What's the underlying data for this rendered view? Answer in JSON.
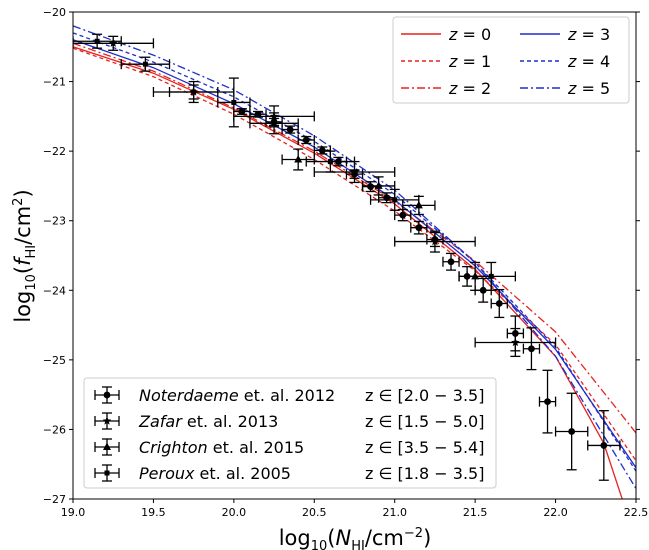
{
  "chart_data": {
    "type": "scatter",
    "title": "",
    "xlabel": "log10(NHI/cm−2)",
    "ylabel": "log10(fHI/cm2)",
    "xlim": [
      19.0,
      22.5
    ],
    "ylim": [
      -27,
      -20
    ],
    "xticks": [
      "19.0",
      "19.5",
      "20.0",
      "20.5",
      "21.0",
      "21.5",
      "22.0",
      "22.5"
    ],
    "yticks": [
      "−27",
      "−26",
      "−25",
      "−24",
      "−23",
      "−22",
      "−21",
      "−20"
    ],
    "grid": false,
    "model_legend_placement": "top-right",
    "data_legend_placement": "bottom-left",
    "model_curves": [
      {
        "name": "z = 0",
        "z": "0",
        "color": "#e6231f",
        "dash": "solid",
        "x": [
          19.0,
          19.5,
          20.0,
          20.5,
          21.0,
          21.5,
          22.0,
          22.3,
          22.5
        ],
        "y": [
          -20.5,
          -20.88,
          -21.4,
          -22.03,
          -22.76,
          -23.7,
          -24.95,
          -26.2,
          -27.6
        ]
      },
      {
        "name": "z = 1",
        "z": "1",
        "color": "#e6231f",
        "dash": "dashed",
        "x": [
          19.0,
          19.5,
          20.0,
          20.5,
          21.0,
          21.5,
          22.0,
          22.5
        ],
        "y": [
          -20.52,
          -20.93,
          -21.47,
          -22.12,
          -22.86,
          -23.72,
          -24.78,
          -26.45
        ]
      },
      {
        "name": "z = 2",
        "z": "2",
        "color": "#e6231f",
        "dash": "dashdot",
        "x": [
          19.0,
          19.5,
          20.0,
          20.5,
          21.0,
          21.5,
          22.0,
          22.5
        ],
        "y": [
          -20.45,
          -20.85,
          -21.38,
          -22.0,
          -22.72,
          -23.58,
          -24.6,
          -26.05
        ]
      },
      {
        "name": "z = 3",
        "z": "3",
        "color": "#1f2fcc",
        "dash": "solid",
        "x": [
          19.0,
          19.5,
          20.0,
          20.5,
          21.0,
          21.5,
          22.0,
          22.5
        ],
        "y": [
          -20.4,
          -20.8,
          -21.32,
          -21.94,
          -22.7,
          -23.65,
          -24.85,
          -26.55
        ]
      },
      {
        "name": "z = 4",
        "z": "4",
        "color": "#1f2fcc",
        "dash": "dashed",
        "x": [
          19.0,
          19.5,
          20.0,
          20.5,
          21.0,
          21.5,
          22.0,
          22.5
        ],
        "y": [
          -20.3,
          -20.72,
          -21.22,
          -21.86,
          -22.62,
          -23.6,
          -24.82,
          -26.6
        ]
      },
      {
        "name": "z = 5",
        "z": "5",
        "color": "#1f2fcc",
        "dash": "dashdot",
        "x": [
          19.0,
          19.5,
          20.0,
          20.5,
          21.0,
          21.5,
          22.0,
          22.5
        ],
        "y": [
          -20.2,
          -20.62,
          -21.12,
          -21.78,
          -22.56,
          -23.6,
          -24.95,
          -26.85
        ]
      }
    ],
    "observations": [
      {
        "name": "Noterdaeme et. al. 2012",
        "author": "Noterdaeme",
        "rest": " et. al. 2012",
        "zrange": "z ∈ [2.0 − 3.5]",
        "marker": "circle",
        "points": [
          {
            "x": 20.05,
            "y": -21.43,
            "xerr": 0.05,
            "yerr": 0.04
          },
          {
            "x": 20.15,
            "y": -21.47,
            "xerr": 0.05,
            "yerr": 0.04
          },
          {
            "x": 20.25,
            "y": -21.58,
            "xerr": 0.05,
            "yerr": 0.05
          },
          {
            "x": 20.35,
            "y": -21.69,
            "xerr": 0.05,
            "yerr": 0.05
          },
          {
            "x": 20.45,
            "y": -21.84,
            "xerr": 0.05,
            "yerr": 0.05
          },
          {
            "x": 20.55,
            "y": -21.99,
            "xerr": 0.05,
            "yerr": 0.05
          },
          {
            "x": 20.65,
            "y": -22.15,
            "xerr": 0.05,
            "yerr": 0.06
          },
          {
            "x": 20.75,
            "y": -22.33,
            "xerr": 0.05,
            "yerr": 0.06
          },
          {
            "x": 20.85,
            "y": -22.51,
            "xerr": 0.05,
            "yerr": 0.07
          },
          {
            "x": 20.95,
            "y": -22.67,
            "xerr": 0.05,
            "yerr": 0.07
          },
          {
            "x": 21.05,
            "y": -22.92,
            "xerr": 0.05,
            "yerr": 0.08
          },
          {
            "x": 21.15,
            "y": -23.1,
            "xerr": 0.05,
            "yerr": 0.09
          },
          {
            "x": 21.25,
            "y": -23.27,
            "xerr": 0.05,
            "yerr": 0.1
          },
          {
            "x": 21.35,
            "y": -23.59,
            "xerr": 0.05,
            "yerr": 0.12
          },
          {
            "x": 21.45,
            "y": -23.8,
            "xerr": 0.05,
            "yerr": 0.14
          },
          {
            "x": 21.55,
            "y": -24.0,
            "xerr": 0.05,
            "yerr": 0.17
          },
          {
            "x": 21.65,
            "y": -24.19,
            "xerr": 0.05,
            "yerr": 0.2
          },
          {
            "x": 21.75,
            "y": -24.62,
            "xerr": 0.05,
            "yerr": 0.25
          },
          {
            "x": 21.85,
            "y": -24.84,
            "xerr": 0.05,
            "yerr": 0.3
          },
          {
            "x": 21.95,
            "y": -25.6,
            "xerr": 0.05,
            "yerr": 0.45
          },
          {
            "x": 22.1,
            "y": -26.03,
            "xerr": 0.1,
            "yerr": 0.55
          },
          {
            "x": 22.3,
            "y": -26.23,
            "xerr": 0.1,
            "yerr": 0.5
          }
        ]
      },
      {
        "name": "Zafar et. al. 2013",
        "author": "Zafar",
        "rest": " et. al. 2013",
        "zrange": "z ∈ [1.5 − 5.0]",
        "marker": "star",
        "points": [
          {
            "x": 19.25,
            "y": -20.45,
            "xerr": 0.25,
            "yerr": 0.1
          },
          {
            "x": 19.75,
            "y": -21.15,
            "xerr": 0.25,
            "yerr": 0.15
          },
          {
            "x": 20.25,
            "y": -21.5,
            "xerr": 0.25,
            "yerr": 0.15
          },
          {
            "x": 20.75,
            "y": -22.3,
            "xerr": 0.25,
            "yerr": 0.15
          },
          {
            "x": 21.25,
            "y": -23.3,
            "xerr": 0.25,
            "yerr": 0.15
          },
          {
            "x": 21.75,
            "y": -24.75,
            "xerr": 0.25,
            "yerr": 0.2
          }
        ]
      },
      {
        "name": "Crighton et. al. 2015",
        "author": "Crighton",
        "rest": " et. al. 2015",
        "zrange": "z ∈ [3.5 − 5.4]",
        "marker": "triangle",
        "points": [
          {
            "x": 20.4,
            "y": -22.12,
            "xerr": 0.1,
            "yerr": 0.15
          },
          {
            "x": 20.9,
            "y": -22.5,
            "xerr": 0.1,
            "yerr": 0.13
          },
          {
            "x": 21.15,
            "y": -22.78,
            "xerr": 0.1,
            "yerr": 0.13
          },
          {
            "x": 21.5,
            "y": -23.8,
            "xerr": 0.1,
            "yerr": 0.2
          }
        ]
      },
      {
        "name": "Peroux et. al. 2005",
        "author": "Peroux",
        "rest": " et. al. 2005",
        "zrange": "z ∈ [1.8 − 3.5]",
        "marker": "square",
        "points": [
          {
            "x": 19.15,
            "y": -20.42,
            "xerr": 0.15,
            "yerr": 0.1
          },
          {
            "x": 19.45,
            "y": -20.75,
            "xerr": 0.15,
            "yerr": 0.1
          },
          {
            "x": 19.75,
            "y": -21.15,
            "xerr": 0.15,
            "yerr": 0.1
          },
          {
            "x": 20.0,
            "y": -21.3,
            "xerr": 0.1,
            "yerr": 0.35
          },
          {
            "x": 20.25,
            "y": -21.6,
            "xerr": 0.15,
            "yerr": 0.15
          },
          {
            "x": 20.6,
            "y": -22.15,
            "xerr": 0.15,
            "yerr": 0.15
          },
          {
            "x": 21.0,
            "y": -22.7,
            "xerr": 0.15,
            "yerr": 0.15
          },
          {
            "x": 21.6,
            "y": -23.8,
            "xerr": 0.15,
            "yerr": 0.2
          }
        ]
      }
    ]
  }
}
